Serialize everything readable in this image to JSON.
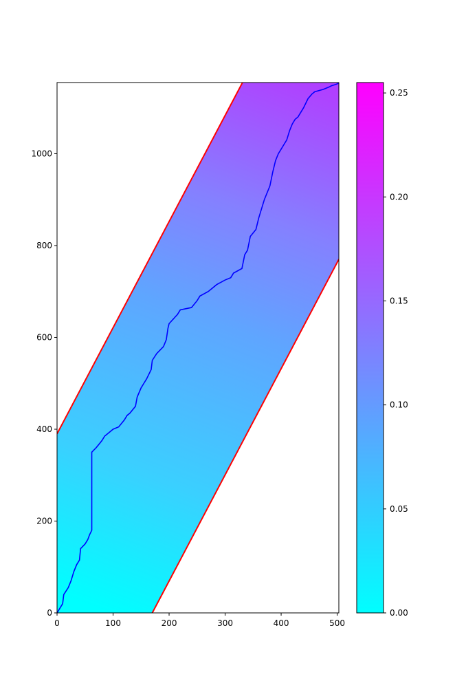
{
  "chart_data": [
    {
      "type": "heatmap",
      "title": "",
      "xlabel": "",
      "ylabel": "",
      "xlim": [
        0,
        503
      ],
      "ylim": [
        0,
        1155
      ],
      "xticks": [
        0,
        100,
        200,
        300,
        400,
        500
      ],
      "yticks": [
        0,
        200,
        400,
        600,
        800,
        1000
      ],
      "colormap": "cool",
      "colormap_colors": [
        "#00ffff",
        "#ff00ff"
      ],
      "band_lines": {
        "color": "#ff0000",
        "upper": {
          "x": [
            0,
            331
          ],
          "y": [
            390,
            1155
          ]
        },
        "lower": {
          "x": [
            170,
            503
          ],
          "y": [
            0,
            770
          ]
        }
      },
      "path": {
        "color": "#0000ff",
        "x": [
          0,
          5,
          10,
          12,
          20,
          25,
          30,
          35,
          40,
          42,
          50,
          55,
          58,
          62,
          62,
          70,
          80,
          85,
          95,
          100,
          110,
          120,
          125,
          130,
          140,
          143,
          150,
          155,
          160,
          168,
          170,
          178,
          190,
          195,
          198,
          200,
          215,
          220,
          240,
          250,
          255,
          270,
          285,
          300,
          310,
          315,
          330,
          335,
          340,
          345,
          355,
          360,
          365,
          370,
          375,
          380,
          385,
          390,
          395,
          400,
          405,
          410,
          415,
          420,
          425,
          430,
          440,
          448,
          455,
          460,
          475,
          485,
          490,
          495,
          500,
          503
        ],
        "y": [
          0,
          10,
          20,
          40,
          55,
          70,
          90,
          105,
          115,
          140,
          150,
          160,
          170,
          180,
          350,
          360,
          375,
          385,
          395,
          400,
          405,
          420,
          430,
          435,
          450,
          470,
          490,
          500,
          510,
          530,
          550,
          565,
          580,
          595,
          620,
          630,
          650,
          660,
          665,
          680,
          690,
          700,
          715,
          725,
          730,
          740,
          750,
          780,
          790,
          820,
          835,
          860,
          880,
          900,
          915,
          930,
          960,
          985,
          1000,
          1010,
          1020,
          1030,
          1050,
          1065,
          1075,
          1080,
          1100,
          1120,
          1130,
          1135,
          1140,
          1145,
          1148,
          1150,
          1152,
          1155
        ]
      }
    },
    {
      "type": "colorbar",
      "ylim": [
        0,
        0.255
      ],
      "ticks": [
        0.0,
        0.05,
        0.1,
        0.15,
        0.2,
        0.25
      ],
      "tick_labels": [
        "0.00",
        "0.05",
        "0.10",
        "0.15",
        "0.20",
        "0.25"
      ]
    }
  ]
}
